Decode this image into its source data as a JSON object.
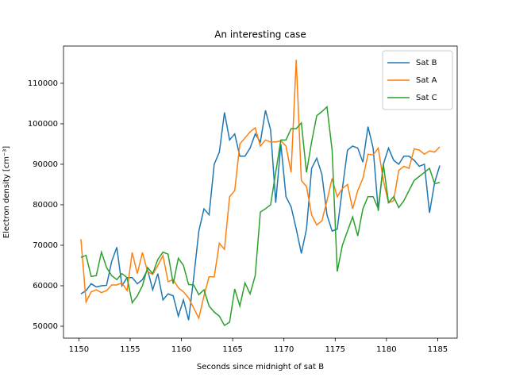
{
  "chart_data": {
    "type": "line",
    "title": "An interesting case",
    "x_label": "Seconds since midnight of sat B",
    "y_label": "Electron density [cm⁻³]",
    "x": [
      1150.2,
      1150.7,
      1151.2,
      1151.7,
      1152.2,
      1152.7,
      1153.2,
      1153.7,
      1154.2,
      1154.7,
      1155.2,
      1155.7,
      1156.2,
      1156.7,
      1157.2,
      1157.7,
      1158.2,
      1158.7,
      1159.2,
      1159.7,
      1160.2,
      1160.7,
      1161.2,
      1161.7,
      1162.2,
      1162.7,
      1163.2,
      1163.7,
      1164.2,
      1164.7,
      1165.2,
      1165.7,
      1166.2,
      1166.7,
      1167.2,
      1167.7,
      1168.2,
      1168.7,
      1169.2,
      1169.7,
      1170.2,
      1170.7,
      1171.2,
      1171.7,
      1172.2,
      1172.7,
      1173.2,
      1173.7,
      1174.2,
      1174.7,
      1175.2,
      1175.7,
      1176.2,
      1176.7,
      1177.2,
      1177.7,
      1178.2,
      1178.7,
      1179.2,
      1179.7,
      1180.2,
      1180.7,
      1181.2,
      1181.7,
      1182.2,
      1182.7,
      1183.2,
      1183.7,
      1184.2,
      1184.7,
      1185.2
    ],
    "series": [
      {
        "name": "Sat B",
        "color": "#1f77b4",
        "values": [
          58000,
          58800,
          60500,
          59700,
          60000,
          60100,
          66000,
          69500,
          60000,
          62000,
          62000,
          60500,
          61500,
          64000,
          59000,
          63000,
          56500,
          58000,
          57500,
          52500,
          56500,
          51500,
          62000,
          73500,
          79000,
          77500,
          90000,
          93000,
          102800,
          96000,
          97500,
          92000,
          92000,
          94000,
          97500,
          95500,
          103300,
          98500,
          80500,
          95000,
          82000,
          79500,
          74000,
          68000,
          74000,
          89000,
          91500,
          87500,
          77500,
          73500,
          74000,
          84000,
          93500,
          94500,
          94000,
          90500,
          99300,
          94000,
          78500,
          90000,
          94000,
          91000,
          90000,
          92000,
          92000,
          91000,
          89500,
          90000,
          78000,
          85500,
          89700
        ]
      },
      {
        "name": "Sat A",
        "color": "#ff7f0e",
        "values": [
          71500,
          56000,
          58500,
          59000,
          58300,
          58800,
          60200,
          60200,
          60700,
          58800,
          68200,
          63000,
          68200,
          63500,
          62800,
          65000,
          67500,
          61000,
          61500,
          59500,
          58500,
          57000,
          54500,
          52000,
          57500,
          62200,
          62200,
          70500,
          69000,
          82000,
          83500,
          95000,
          96500,
          98000,
          99000,
          94500,
          96000,
          95500,
          95500,
          95800,
          94500,
          88000,
          115800,
          86000,
          84500,
          77500,
          75000,
          76000,
          81000,
          86500,
          82000,
          84000,
          85000,
          79000,
          83500,
          86500,
          92500,
          92300,
          94000,
          86000,
          80500,
          81000,
          88500,
          89500,
          89000,
          93800,
          93500,
          92500,
          93300,
          93000,
          94300
        ]
      },
      {
        "name": "Sat C",
        "color": "#2ca02c",
        "values": [
          67000,
          67500,
          62300,
          62500,
          68300,
          64500,
          62500,
          61500,
          63000,
          62000,
          55800,
          57500,
          60000,
          64500,
          63000,
          66500,
          68300,
          67800,
          60500,
          66800,
          65000,
          60300,
          60200,
          57800,
          59000,
          55000,
          53500,
          52500,
          50200,
          51000,
          59200,
          55000,
          60700,
          58000,
          62500,
          78200,
          79000,
          80000,
          88000,
          96000,
          96000,
          98800,
          98800,
          100200,
          88000,
          95500,
          102000,
          103000,
          104200,
          93500,
          63500,
          70000,
          73500,
          77000,
          72300,
          79000,
          82000,
          82000,
          79000,
          90000,
          80500,
          82000,
          79300,
          81000,
          83500,
          86000,
          87000,
          88000,
          89000,
          85200,
          85500
        ]
      }
    ],
    "xlim": [
      1148.5,
      1186.9
    ],
    "ylim": [
      47060,
      119200
    ],
    "xticks": [
      1150,
      1155,
      1160,
      1165,
      1170,
      1175,
      1180,
      1185
    ],
    "yticks": [
      50000,
      60000,
      70000,
      80000,
      90000,
      100000,
      110000
    ],
    "legend": "upper right"
  }
}
